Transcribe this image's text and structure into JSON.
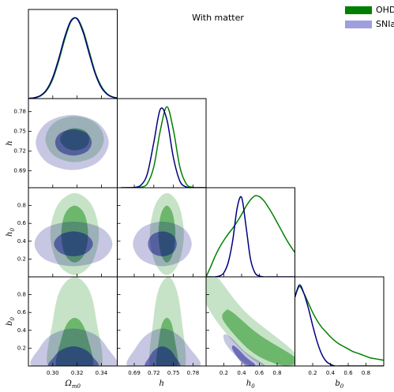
{
  "chart_data": {
    "type": "corner",
    "title": "With matter",
    "series": [
      {
        "name": "OHD",
        "color": "#008000",
        "fill_color": "#007f00"
      },
      {
        "name": "SNIa",
        "color": "#000080",
        "fill_color": "#9f9fdf"
      }
    ],
    "params": [
      {
        "symbol": "Ω",
        "sub": "m0",
        "lim": [
          0.28,
          0.353
        ],
        "ticks": [
          {
            "value": 0.3,
            "label": "0.30"
          },
          0.32,
          0.34
        ]
      },
      {
        "symbol": "h",
        "lim": [
          0.664,
          0.8
        ],
        "ticks": [
          0.69,
          0.72,
          0.75,
          0.78
        ]
      },
      {
        "symbol": "h",
        "sub": "0",
        "lim": [
          0,
          1
        ],
        "ticks": [
          0.2,
          0.4,
          0.6,
          0.8
        ]
      },
      {
        "symbol": "b",
        "sub": "0",
        "lim": [
          0,
          1
        ],
        "ticks": [
          0.2,
          0.4,
          0.6,
          0.8
        ]
      }
    ],
    "marginals": [
      {
        "type": "line",
        "ylim": [
          0,
          1.1
        ],
        "x": [
          0.28,
          0.285,
          0.29,
          0.295,
          0.3,
          0.305,
          0.31,
          0.315,
          0.32,
          0.325,
          0.33,
          0.335,
          0.34,
          0.345,
          0.35,
          0.355
        ],
        "series": [
          {
            "values": [
              0.002,
              0.009,
              0.033,
              0.1,
              0.24,
              0.47,
              0.74,
              0.95,
              0.99,
              0.84,
              0.58,
              0.32,
              0.15,
              0.056,
              0.017,
              0.004
            ]
          },
          {
            "values": [
              0.003,
              0.011,
              0.039,
              0.112,
              0.262,
              0.497,
              0.768,
              0.963,
              0.984,
              0.817,
              0.552,
              0.303,
              0.135,
              0.05,
              0.015,
              0.004
            ]
          }
        ]
      },
      {
        "type": "line",
        "ylim": [
          0,
          1.1
        ],
        "x": [
          0.67,
          0.68,
          0.69,
          0.7,
          0.71,
          0.72,
          0.73,
          0.74,
          0.75,
          0.76,
          0.77,
          0.78,
          0.79,
          0.8
        ],
        "series": [
          {
            "values": [
              0,
              0,
              0.001,
              0.006,
              0.05,
              0.26,
              0.71,
              1.0,
              0.71,
              0.25,
              0.044,
              0.004,
              0.001,
              0
            ]
          },
          {
            "values": [
              0,
              0.001,
              0.004,
              0.03,
              0.17,
              0.56,
              0.97,
              0.84,
              0.37,
              0.08,
              0.009,
              0.001,
              0,
              0
            ]
          }
        ]
      },
      {
        "type": "line",
        "ylim": [
          0,
          1.1
        ],
        "x": [
          0,
          0.05,
          0.1,
          0.15,
          0.2,
          0.25,
          0.3,
          0.35,
          0.4,
          0.45,
          0.5,
          0.55,
          0.6,
          0.65,
          0.7,
          0.75,
          0.8,
          0.85,
          0.9,
          0.95,
          1.0
        ],
        "series": [
          {
            "values": [
              0,
              0.12,
              0.25,
              0.36,
              0.45,
              0.53,
              0.6,
              0.68,
              0.77,
              0.87,
              0.95,
              1.0,
              0.99,
              0.94,
              0.86,
              0.77,
              0.67,
              0.57,
              0.47,
              0.38,
              0.3
            ]
          },
          {
            "values": [
              0,
              0,
              0,
              0.01,
              0.05,
              0.18,
              0.45,
              0.85,
              0.98,
              0.62,
              0.22,
              0.05,
              0.01,
              0,
              0,
              0,
              0,
              0,
              0,
              0,
              0
            ]
          }
        ]
      },
      {
        "type": "line",
        "ylim": [
          0,
          1.1
        ],
        "x": [
          0,
          0.05,
          0.1,
          0.15,
          0.2,
          0.25,
          0.3,
          0.35,
          0.4,
          0.45,
          0.5,
          0.55,
          0.6,
          0.65,
          0.7,
          0.75,
          0.8,
          0.85,
          0.9,
          0.95,
          1.0
        ],
        "series": [
          {
            "values": [
              0.85,
              0.98,
              0.9,
              0.78,
              0.66,
              0.56,
              0.48,
              0.42,
              0.36,
              0.31,
              0.27,
              0.24,
              0.21,
              0.18,
              0.16,
              0.14,
              0.12,
              0.1,
              0.09,
              0.08,
              0.07
            ]
          },
          {
            "values": [
              0.85,
              1.0,
              0.9,
              0.72,
              0.5,
              0.3,
              0.15,
              0.06,
              0.02,
              0,
              0,
              0,
              0,
              0,
              0,
              0,
              0,
              0,
              0,
              0,
              0
            ]
          }
        ]
      }
    ],
    "joints": [
      {
        "type": "contour",
        "x_param": 0,
        "y_param": 1,
        "series": [
          {
            "levels": [
              {
                "x": [
                  0.342,
                  0.335,
                  0.318,
                  0.301,
                  0.294,
                  0.301,
                  0.318,
                  0.335
                ],
                "y": [
                  0.738,
                  0.763,
                  0.773,
                  0.763,
                  0.738,
                  0.713,
                  0.703,
                  0.713
                ]
              },
              {
                "x": [
                  0.33,
                  0.327,
                  0.318,
                  0.31,
                  0.306,
                  0.31,
                  0.318,
                  0.327
                ],
                "y": [
                  0.738,
                  0.75,
                  0.755,
                  0.75,
                  0.738,
                  0.726,
                  0.721,
                  0.726
                ]
              }
            ]
          },
          {
            "levels": [
              {
                "x": [
                  0.346,
                  0.337,
                  0.316,
                  0.295,
                  0.286,
                  0.295,
                  0.316,
                  0.337
                ],
                "y": [
                  0.733,
                  0.763,
                  0.775,
                  0.763,
                  0.733,
                  0.703,
                  0.691,
                  0.703
                ]
              },
              {
                "x": [
                  0.332,
                  0.328,
                  0.317,
                  0.306,
                  0.302,
                  0.306,
                  0.317,
                  0.328
                ],
                "y": [
                  0.733,
                  0.747,
                  0.753,
                  0.747,
                  0.733,
                  0.719,
                  0.713,
                  0.719
                ]
              }
            ]
          }
        ]
      },
      {
        "type": "contour",
        "x_param": 0,
        "y_param": 2,
        "series": [
          {
            "levels": [
              {
                "x": [
                  0.338,
                  0.332,
                  0.318,
                  0.304,
                  0.298,
                  0.304,
                  0.318,
                  0.332
                ],
                "y": [
                  0.48,
                  0.805,
                  0.94,
                  0.805,
                  0.48,
                  0.155,
                  0.02,
                  0.155
                ]
              },
              {
                "x": [
                  0.329,
                  0.326,
                  0.318,
                  0.31,
                  0.307,
                  0.31,
                  0.318,
                  0.326
                ],
                "y": [
                  0.48,
                  0.706,
                  0.8,
                  0.706,
                  0.48,
                  0.254,
                  0.16,
                  0.254
                ]
              }
            ]
          },
          {
            "levels": [
              {
                "x": [
                  0.349,
                  0.34,
                  0.317,
                  0.294,
                  0.285,
                  0.294,
                  0.317,
                  0.34
                ],
                "y": [
                  0.37,
                  0.547,
                  0.62,
                  0.547,
                  0.37,
                  0.193,
                  0.12,
                  0.193
                ]
              },
              {
                "x": [
                  0.333,
                  0.328,
                  0.317,
                  0.306,
                  0.301,
                  0.306,
                  0.317,
                  0.328
                ],
                "y": [
                  0.37,
                  0.469,
                  0.51,
                  0.469,
                  0.37,
                  0.271,
                  0.23,
                  0.271
                ]
              }
            ]
          }
        ]
      },
      {
        "type": "contour",
        "x_param": 1,
        "y_param": 2,
        "series": [
          {
            "levels": [
              {
                "x": [
                  0.766,
                  0.758,
                  0.74,
                  0.722,
                  0.714,
                  0.722,
                  0.74,
                  0.758
                ],
                "y": [
                  0.48,
                  0.805,
                  0.94,
                  0.805,
                  0.48,
                  0.155,
                  0.02,
                  0.155
                ]
              },
              {
                "x": [
                  0.753,
                  0.749,
                  0.74,
                  0.731,
                  0.727,
                  0.731,
                  0.74,
                  0.749
                ],
                "y": [
                  0.48,
                  0.706,
                  0.8,
                  0.706,
                  0.48,
                  0.254,
                  0.16,
                  0.254
                ]
              }
            ]
          },
          {
            "levels": [
              {
                "x": [
                  0.778,
                  0.765,
                  0.733,
                  0.701,
                  0.688,
                  0.701,
                  0.733,
                  0.765
                ],
                "y": [
                  0.37,
                  0.547,
                  0.62,
                  0.547,
                  0.37,
                  0.193,
                  0.12,
                  0.193
                ]
              },
              {
                "x": [
                  0.755,
                  0.749,
                  0.733,
                  0.717,
                  0.711,
                  0.717,
                  0.733,
                  0.749
                ],
                "y": [
                  0.37,
                  0.469,
                  0.51,
                  0.469,
                  0.37,
                  0.271,
                  0.23,
                  0.271
                ]
              }
            ]
          }
        ]
      },
      {
        "type": "contour",
        "x_param": 0,
        "y_param": 3,
        "series": [
          {
            "levels": [
              {
                "x": [
                  0.34,
                  0.336,
                  0.33,
                  0.318,
                  0.306,
                  0.3,
                  0.296,
                  0.318
                ],
                "y": [
                  0,
                  0.5,
                  0.85,
                  1.0,
                  0.85,
                  0.5,
                  0,
                  0
                ]
              },
              {
                "x": [
                  0.333,
                  0.329,
                  0.324,
                  0.318,
                  0.312,
                  0.307,
                  0.303,
                  0.318
                ],
                "y": [
                  0,
                  0.3,
                  0.48,
                  0.54,
                  0.48,
                  0.3,
                  0,
                  0
                ]
              }
            ]
          },
          {
            "levels": [
              {
                "x": [
                  0.352,
                  0.345,
                  0.335,
                  0.317,
                  0.299,
                  0.289,
                  0.283,
                  0.317
                ],
                "y": [
                  0,
                  0.2,
                  0.35,
                  0.42,
                  0.35,
                  0.2,
                  0,
                  0
                ]
              },
              {
                "x": [
                  0.337,
                  0.333,
                  0.327,
                  0.317,
                  0.307,
                  0.301,
                  0.297,
                  0.317
                ],
                "y": [
                  0,
                  0.1,
                  0.18,
                  0.22,
                  0.18,
                  0.1,
                  0,
                  0
                ]
              }
            ]
          }
        ]
      },
      {
        "type": "contour",
        "x_param": 1,
        "y_param": 3,
        "series": [
          {
            "levels": [
              {
                "x": [
                  0.768,
                  0.763,
                  0.755,
                  0.742,
                  0.727,
                  0.719,
                  0.714,
                  0.741
                ],
                "y": [
                  0,
                  0.5,
                  0.85,
                  1.0,
                  0.85,
                  0.5,
                  0,
                  0
                ]
              },
              {
                "x": [
                  0.757,
                  0.752,
                  0.747,
                  0.74,
                  0.733,
                  0.728,
                  0.724,
                  0.74
                ],
                "y": [
                  0,
                  0.3,
                  0.48,
                  0.54,
                  0.48,
                  0.3,
                  0,
                  0
                ]
              }
            ]
          },
          {
            "levels": [
              {
                "x": [
                  0.79,
                  0.775,
                  0.757,
                  0.733,
                  0.709,
                  0.692,
                  0.68,
                  0.733
                ],
                "y": [
                  0,
                  0.2,
                  0.35,
                  0.42,
                  0.35,
                  0.2,
                  0,
                  0
                ]
              },
              {
                "x": [
                  0.76,
                  0.753,
                  0.745,
                  0.733,
                  0.721,
                  0.713,
                  0.707,
                  0.733
                ],
                "y": [
                  0,
                  0.1,
                  0.18,
                  0.22,
                  0.18,
                  0.1,
                  0,
                  0
                ]
              }
            ]
          }
        ]
      },
      {
        "type": "contour",
        "x_param": 2,
        "y_param": 3,
        "series": [
          {
            "levels": [
              {
                "x": [
                  0,
                  0.12,
                  0.45,
                  1.0,
                  1.0,
                  0.65,
                  0.3,
                  0
                ],
                "y": [
                  1.0,
                  1.0,
                  0.6,
                  0.15,
                  0,
                  0,
                  0.28,
                  0.7
                ]
              },
              {
                "x": [
                  0.22,
                  0.3,
                  0.6,
                  1.0,
                  1.0,
                  0.8,
                  0.5,
                  0.2
                ],
                "y": [
                  0.62,
                  0.6,
                  0.35,
                  0.1,
                  0.02,
                  0.02,
                  0.17,
                  0.5
                ]
              }
            ]
          },
          {
            "levels": [
              {
                "x": [
                  0.2,
                  0.28,
                  0.45,
                  0.65,
                  0.62,
                  0.5,
                  0.35,
                  0.22
                ],
                "y": [
                  0.35,
                  0.32,
                  0.15,
                  0.02,
                  0,
                  0,
                  0.1,
                  0.25
                ]
              },
              {
                "x": [
                  0.3,
                  0.35,
                  0.45,
                  0.55,
                  0.52,
                  0.45,
                  0.38,
                  0.3
                ],
                "y": [
                  0.23,
                  0.2,
                  0.1,
                  0.02,
                  0,
                  0,
                  0.06,
                  0.18
                ]
              }
            ]
          }
        ]
      }
    ]
  }
}
